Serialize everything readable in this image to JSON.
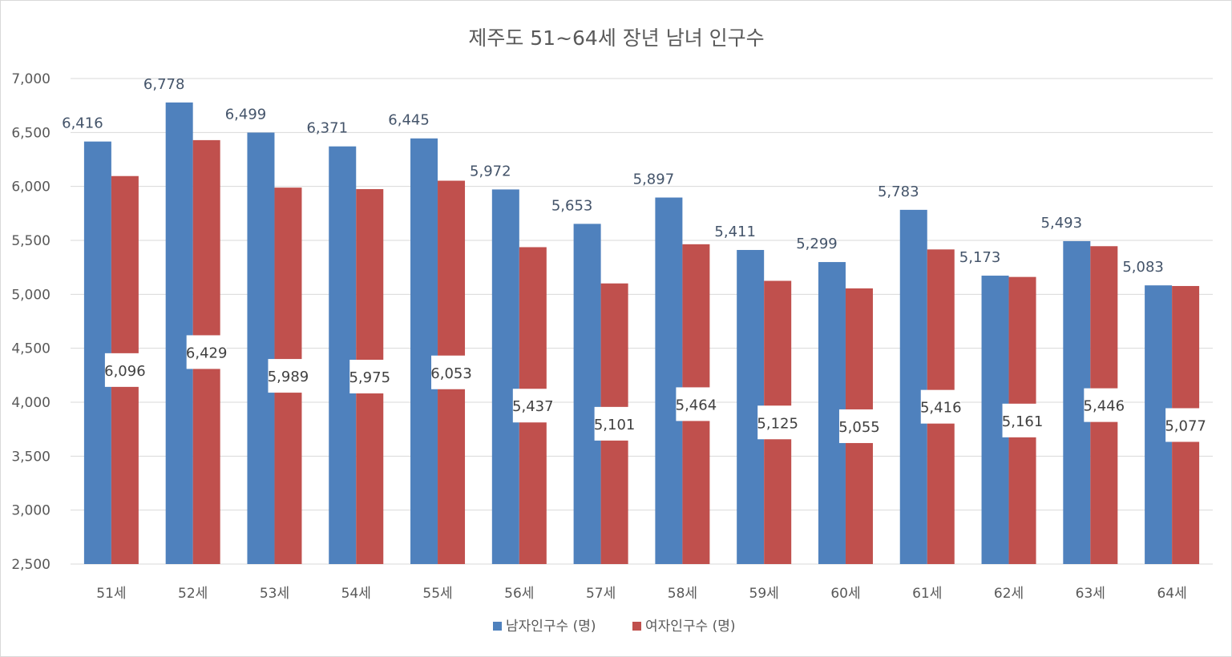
{
  "chart_data": {
    "type": "bar",
    "title": "제주도 51~64세 장년 남녀 인구수",
    "categories": [
      "51세",
      "52세",
      "53세",
      "54세",
      "55세",
      "56세",
      "57세",
      "58세",
      "59세",
      "60세",
      "61세",
      "62세",
      "63세",
      "64세"
    ],
    "series": [
      {
        "name": "남자인구수 (명)",
        "color": "#4f81bd",
        "values": [
          6416,
          6778,
          6499,
          6371,
          6445,
          5972,
          5653,
          5897,
          5411,
          5299,
          5783,
          5173,
          5493,
          5083
        ],
        "labels": [
          "6,416",
          "6,778",
          "6,499",
          "6,371",
          "6,445",
          "5,972",
          "5,653",
          "5,897",
          "5,411",
          "5,299",
          "5,783",
          "5,173",
          "5,493",
          "5,083"
        ]
      },
      {
        "name": "여자인구수 (명)",
        "color": "#c0504d",
        "values": [
          6096,
          6429,
          5989,
          5975,
          6053,
          5437,
          5101,
          5464,
          5125,
          5055,
          5416,
          5161,
          5446,
          5077
        ],
        "labels": [
          "6,096",
          "6,429",
          "5,989",
          "5,975",
          "6,053",
          "5,437",
          "5,101",
          "5,464",
          "5,125",
          "5,055",
          "5,416",
          "5,161",
          "5,446",
          "5,077"
        ]
      }
    ],
    "ylim": [
      2500,
      7000
    ],
    "yticks": [
      2500,
      3000,
      3500,
      4000,
      4500,
      5000,
      5500,
      6000,
      6500,
      7000
    ],
    "ytick_labels": [
      "2,500",
      "3,000",
      "3,500",
      "4,000",
      "4,500",
      "5,000",
      "5,500",
      "6,000",
      "6,500",
      "7,000"
    ],
    "grid": true,
    "legend_position": "bottom"
  }
}
